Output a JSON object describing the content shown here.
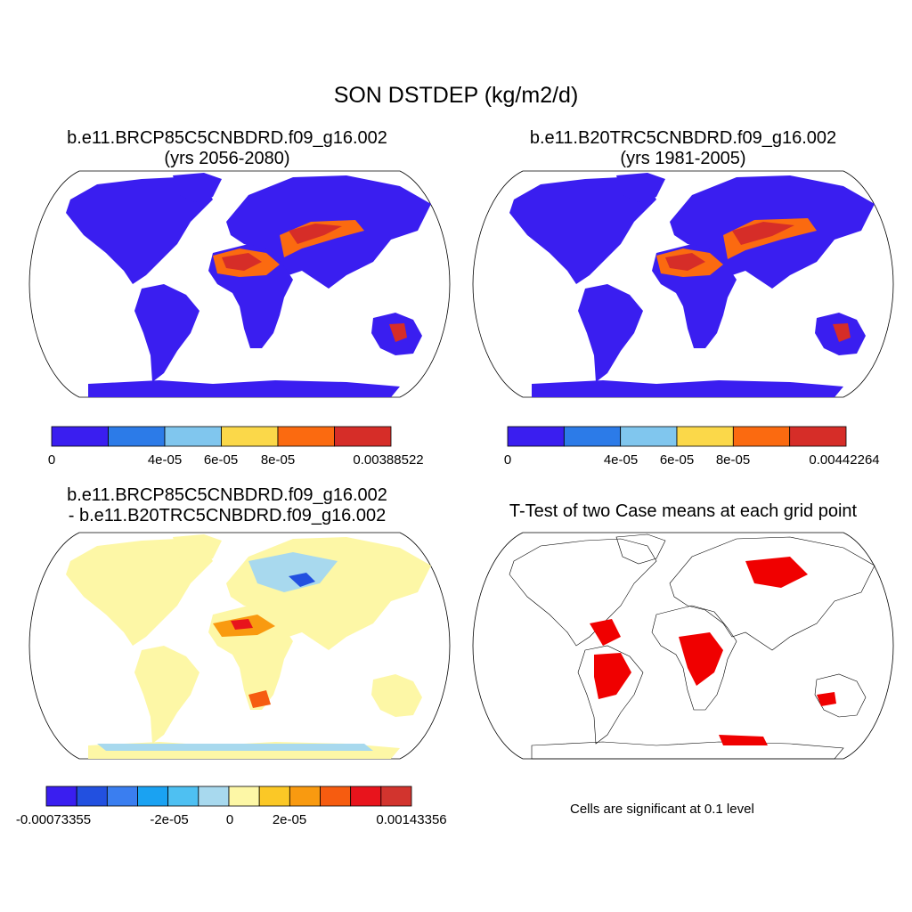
{
  "main_title": "SON DSTDEP (kg/m2/d)",
  "panels": [
    {
      "id": "future",
      "title_line1": "b.e11.BRCP85C5CNBDRD.f09_g16.002",
      "title_line2": "(yrs 2056-2080)",
      "colorbar": {
        "colors": [
          "#3a1ef0",
          "#2c7be8",
          "#80c6ee",
          "#fbd849",
          "#fb6a10",
          "#d62d28"
        ],
        "labels": [
          "0",
          "4e-05",
          "6e-05",
          "8e-05",
          "0.00388522"
        ]
      }
    },
    {
      "id": "historical",
      "title_line1": "b.e11.B20TRC5CNBDRD.f09_g16.002",
      "title_line2": "(yrs 1981-2005)",
      "colorbar": {
        "colors": [
          "#3a1ef0",
          "#2c7be8",
          "#80c6ee",
          "#fbd849",
          "#fb6a10",
          "#d62d28"
        ],
        "labels": [
          "0",
          "4e-05",
          "6e-05",
          "8e-05",
          "0.00442264"
        ]
      }
    },
    {
      "id": "difference",
      "title_line1": "b.e11.BRCP85C5CNBDRD.f09_g16.002",
      "title_line2": "- b.e11.B20TRC5CNBDRD.f09_g16.002",
      "colorbar": {
        "colors": [
          "#3a1ef0",
          "#2250e0",
          "#3a7ef0",
          "#1aa2f2",
          "#4ec0f2",
          "#a8d9ee",
          "#fdf7a6",
          "#fbc826",
          "#f99a10",
          "#f65c10",
          "#e8141c",
          "#d2342e"
        ],
        "labels": [
          "-0.00073355",
          "-2e-05",
          "0",
          "2e-05",
          "0.00143356"
        ]
      }
    },
    {
      "id": "ttest",
      "title_line1": "T-Test of two Case means at each grid point",
      "note": "Cells are significant at 0.1 level",
      "significance_color": "#f00000"
    }
  ]
}
